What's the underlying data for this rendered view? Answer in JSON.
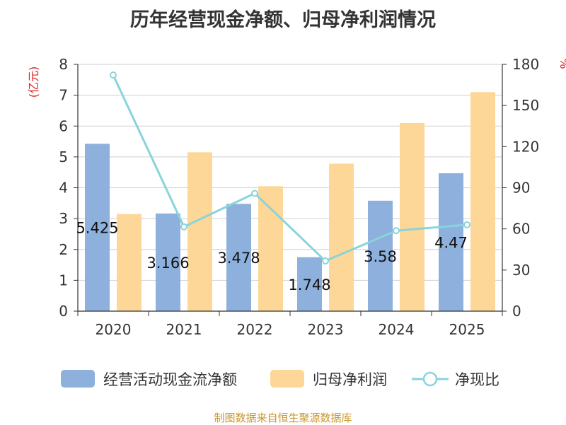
{
  "chart_data": {
    "type": "bar",
    "title": "历年经营现金净额、归母净利润情况",
    "categories": [
      "2020",
      "2021",
      "2022",
      "2023",
      "2024",
      "2025"
    ],
    "series": [
      {
        "name": "经营活动现金流净额",
        "type": "bar",
        "axis": "left",
        "color": "#8eb0dc",
        "values": [
          5.425,
          3.166,
          3.478,
          1.748,
          3.58,
          4.47
        ],
        "labels": [
          "5.425",
          "3.166",
          "3.478",
          "1.748",
          "3.58",
          "4.47"
        ]
      },
      {
        "name": "归母净利润",
        "type": "bar",
        "axis": "left",
        "color": "#fdd797",
        "values": [
          3.15,
          5.15,
          4.05,
          4.78,
          6.1,
          7.1
        ]
      },
      {
        "name": "净现比",
        "type": "line",
        "axis": "right",
        "color": "#88d4dc",
        "values": [
          172.2,
          61.5,
          85.9,
          36.6,
          58.7,
          63.0
        ]
      }
    ],
    "ylabel_left": "(亿元)",
    "ylabel_right": "%",
    "ylim_left": [
      0,
      8
    ],
    "yticks_left": [
      "0",
      "1",
      "2",
      "3",
      "4",
      "5",
      "6",
      "7",
      "8"
    ],
    "ylim_right": [
      0,
      180
    ],
    "yticks_right": [
      "0",
      "30",
      "60",
      "90",
      "120",
      "150",
      "180"
    ],
    "grid": true,
    "legend_position": "bottom",
    "source": "制图数据来自恒生聚源数据库"
  }
}
